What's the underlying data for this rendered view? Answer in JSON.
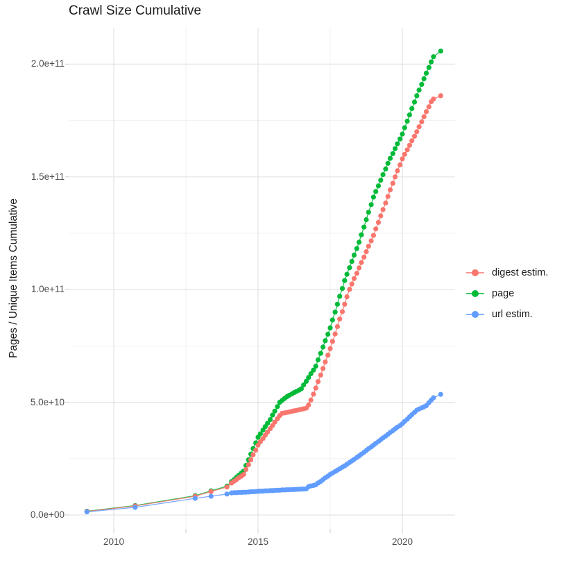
{
  "chart": {
    "title": "Crawl Size Cumulative",
    "y_axis_title": "Pages / Unique Items Cumulative"
  },
  "chart_data": {
    "type": "scatter",
    "title": "Crawl Size Cumulative",
    "xlabel": "",
    "ylabel": "Pages / Unique Items Cumulative",
    "legend_position": "right",
    "grid": true,
    "background": "#ffffff",
    "grid_major_color": "#e4e4e4",
    "grid_minor_color": "#f0f0f0",
    "axis_text_color": "#4d4d4d",
    "values_unit_note": "values are in billions (1e9)",
    "xlim": [
      2008.46,
      2021.82
    ],
    "ylim_billion": [
      0,
      216
    ],
    "x_ticks": [
      {
        "value": 2010,
        "label": "2010"
      },
      {
        "value": 2015,
        "label": "2015"
      },
      {
        "value": 2020,
        "label": "2020"
      }
    ],
    "x_minor_ticks": [
      2012.5,
      2017.5
    ],
    "y_ticks": [
      {
        "value_billion": 0,
        "label": "0.0e+00"
      },
      {
        "value_billion": 50,
        "label": "5.0e+10"
      },
      {
        "value_billion": 100,
        "label": "1.0e+11"
      },
      {
        "value_billion": 150,
        "label": "1.5e+11"
      },
      {
        "value_billion": 200,
        "label": "2.0e+11"
      }
    ],
    "y_minor_ticks_billion": [
      25,
      75,
      125,
      175
    ],
    "x": [
      2009.07,
      2010.74,
      2012.82,
      2013.37,
      2013.92,
      2014.08,
      2014.17,
      2014.25,
      2014.33,
      2014.42,
      2014.5,
      2014.58,
      2014.67,
      2014.75,
      2014.83,
      2014.92,
      2015.0,
      2015.08,
      2015.17,
      2015.25,
      2015.33,
      2015.42,
      2015.5,
      2015.58,
      2015.67,
      2015.75,
      2015.83,
      2015.92,
      2016.0,
      2016.08,
      2016.17,
      2016.25,
      2016.33,
      2016.42,
      2016.5,
      2016.58,
      2016.67,
      2016.75,
      2016.83,
      2016.92,
      2017.0,
      2017.08,
      2017.17,
      2017.25,
      2017.33,
      2017.42,
      2017.5,
      2017.58,
      2017.67,
      2017.75,
      2017.83,
      2017.92,
      2018.0,
      2018.08,
      2018.17,
      2018.25,
      2018.33,
      2018.42,
      2018.5,
      2018.58,
      2018.67,
      2018.75,
      2018.83,
      2018.92,
      2019.0,
      2019.08,
      2019.17,
      2019.25,
      2019.33,
      2019.42,
      2019.5,
      2019.58,
      2019.67,
      2019.75,
      2019.83,
      2019.92,
      2020.0,
      2020.08,
      2020.17,
      2020.25,
      2020.33,
      2020.42,
      2020.5,
      2020.58,
      2020.67,
      2020.75,
      2020.83,
      2020.92,
      2021.0,
      2021.08,
      2021.33
    ],
    "series": [
      {
        "name": "digest estim.",
        "color": "#F8766D",
        "values_billion": [
          1.6,
          4.0,
          8.3,
          10.4,
          12.4,
          14.2,
          15.0,
          15.7,
          16.5,
          17.2,
          18.0,
          20.2,
          22.3,
          24.5,
          26.7,
          28.8,
          31.0,
          32.5,
          33.9,
          35.4,
          36.8,
          38.3,
          39.7,
          41.2,
          42.7,
          44.1,
          45.1,
          45.3,
          45.5,
          45.7,
          46.0,
          46.2,
          46.4,
          46.7,
          46.9,
          47.1,
          47.4,
          48.8,
          51.0,
          53.6,
          56.3,
          59.2,
          62.1,
          65.0,
          67.9,
          70.9,
          73.8,
          77.0,
          80.3,
          83.6,
          86.9,
          90.2,
          93.5,
          96.8,
          100.1,
          102.5,
          104.9,
          107.2,
          109.6,
          112.0,
          114.4,
          116.8,
          119.2,
          121.6,
          124.0,
          126.9,
          129.8,
          132.7,
          135.5,
          138.4,
          141.3,
          144.2,
          147.1,
          150.0,
          152.7,
          155.3,
          158.0,
          160.0,
          162.0,
          164.0,
          166.0,
          168.0,
          170.0,
          172.2,
          174.4,
          176.7,
          178.9,
          181.1,
          183.3,
          184.5,
          186.0
        ]
      },
      {
        "name": "page",
        "color": "#00BA38",
        "values_billion": [
          1.7,
          4.2,
          8.6,
          10.7,
          12.8,
          14.8,
          15.7,
          16.7,
          17.6,
          18.6,
          19.5,
          22.0,
          24.5,
          27.0,
          29.5,
          32.0,
          34.5,
          36.0,
          37.7,
          39.2,
          40.7,
          42.3,
          44.3,
          46.1,
          48.1,
          50.0,
          50.8,
          51.7,
          52.5,
          53.1,
          53.7,
          54.3,
          54.8,
          55.4,
          56.0,
          57.7,
          59.3,
          61.0,
          62.7,
          64.3,
          66.0,
          68.8,
          71.7,
          74.5,
          77.3,
          80.2,
          83.0,
          86.5,
          90.0,
          93.5,
          97.0,
          100.5,
          104.0,
          106.8,
          109.7,
          112.5,
          115.3,
          118.2,
          121.0,
          124.3,
          127.7,
          131.0,
          134.3,
          137.7,
          141.0,
          143.5,
          146.0,
          148.5,
          151.0,
          153.5,
          156.0,
          158.2,
          160.3,
          162.5,
          164.7,
          166.8,
          169.0,
          171.8,
          174.7,
          177.5,
          180.3,
          183.2,
          186.0,
          188.5,
          191.0,
          193.5,
          196.0,
          198.5,
          201.0,
          203.3,
          205.8
        ]
      },
      {
        "name": "url estim.",
        "color": "#619CFF",
        "values_billion": [
          1.4,
          3.4,
          7.4,
          8.3,
          9.3,
          9.8,
          9.9,
          9.9,
          10.0,
          10.0,
          10.1,
          10.1,
          10.2,
          10.3,
          10.3,
          10.4,
          10.5,
          10.6,
          10.6,
          10.7,
          10.7,
          10.8,
          10.8,
          10.9,
          11.0,
          11.0,
          11.1,
          11.1,
          11.2,
          11.2,
          11.3,
          11.3,
          11.4,
          11.4,
          11.5,
          11.5,
          11.6,
          12.6,
          12.9,
          13.1,
          13.4,
          14.2,
          14.9,
          15.7,
          16.5,
          17.2,
          18.0,
          18.6,
          19.3,
          19.9,
          20.5,
          21.2,
          21.8,
          22.5,
          23.3,
          24.0,
          24.7,
          25.5,
          26.2,
          27.0,
          27.8,
          28.6,
          29.4,
          30.2,
          31.0,
          31.8,
          32.6,
          33.4,
          34.2,
          35.0,
          35.8,
          36.6,
          37.4,
          38.2,
          39.0,
          39.7,
          40.5,
          41.5,
          42.5,
          43.5,
          44.5,
          45.5,
          46.5,
          47.0,
          47.5,
          48.0,
          48.5,
          49.8,
          51.0,
          52.0,
          53.5
        ]
      }
    ]
  }
}
